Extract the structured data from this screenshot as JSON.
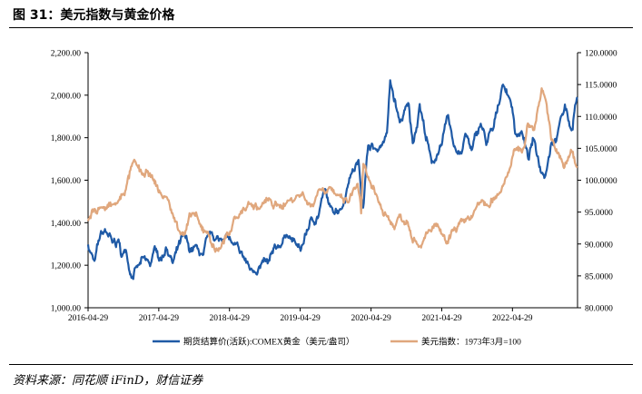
{
  "figure": {
    "title": "图 31：美元指数与黄金价格",
    "source": "资料来源：同花顺 iFinD，财信证券"
  },
  "colors": {
    "gold": "#1f5aa6",
    "dxy": "#e0a77d"
  },
  "chart_data": {
    "type": "line",
    "x_ticks": [
      "2016-04-29",
      "2017-04-29",
      "2018-04-29",
      "2019-04-29",
      "2020-04-29",
      "2021-04-29",
      "2022-04-29"
    ],
    "x_range": [
      "2016-04-29",
      "2023-03-31"
    ],
    "y_left": {
      "min": 1000,
      "max": 2200,
      "ticks": [
        "1,000.00",
        "1,200.00",
        "1,400.00",
        "1,600.00",
        "1,800.00",
        "2,000.00",
        "2,200.00"
      ]
    },
    "y_right": {
      "min": 80,
      "max": 120,
      "ticks": [
        "80.0000",
        "85.0000",
        "90.0000",
        "95.0000",
        "100.0000",
        "105.0000",
        "110.0000",
        "115.0000",
        "120.0000"
      ]
    },
    "grid": false,
    "legend_position": "bottom",
    "series": [
      {
        "name": "期货结算价(活跃):COMEX黄金（美元/盎司）",
        "axis": "left",
        "points": [
          [
            "2016-04-29",
            1290
          ],
          [
            "2016-06-01",
            1215
          ],
          [
            "2016-07-05",
            1355
          ],
          [
            "2016-08-01",
            1360
          ],
          [
            "2016-09-01",
            1310
          ],
          [
            "2016-10-03",
            1315
          ],
          [
            "2016-10-15",
            1255
          ],
          [
            "2016-11-10",
            1265
          ],
          [
            "2016-12-15",
            1135
          ],
          [
            "2017-01-15",
            1200
          ],
          [
            "2017-02-15",
            1235
          ],
          [
            "2017-03-15",
            1200
          ],
          [
            "2017-04-15",
            1285
          ],
          [
            "2017-05-10",
            1225
          ],
          [
            "2017-06-05",
            1285
          ],
          [
            "2017-07-10",
            1210
          ],
          [
            "2017-09-08",
            1350
          ],
          [
            "2017-10-05",
            1270
          ],
          [
            "2017-11-15",
            1285
          ],
          [
            "2017-12-12",
            1245
          ],
          [
            "2018-01-25",
            1360
          ],
          [
            "2018-03-05",
            1320
          ],
          [
            "2018-04-10",
            1345
          ],
          [
            "2018-05-20",
            1290
          ],
          [
            "2018-06-15",
            1280
          ],
          [
            "2018-08-16",
            1180
          ],
          [
            "2018-10-01",
            1190
          ],
          [
            "2018-11-15",
            1215
          ],
          [
            "2019-01-01",
            1285
          ],
          [
            "2019-02-20",
            1345
          ],
          [
            "2019-05-01",
            1270
          ],
          [
            "2019-06-25",
            1420
          ],
          [
            "2019-08-01",
            1430
          ],
          [
            "2019-09-04",
            1560
          ],
          [
            "2019-10-01",
            1470
          ],
          [
            "2019-12-01",
            1470
          ],
          [
            "2020-01-08",
            1610
          ],
          [
            "2020-02-24",
            1690
          ],
          [
            "2020-03-19",
            1470
          ],
          [
            "2020-04-14",
            1770
          ],
          [
            "2020-06-01",
            1740
          ],
          [
            "2020-07-20",
            1820
          ],
          [
            "2020-08-06",
            2070
          ],
          [
            "2020-09-24",
            1870
          ],
          [
            "2020-11-10",
            1960
          ],
          [
            "2020-11-30",
            1770
          ],
          [
            "2021-01-05",
            1950
          ],
          [
            "2021-03-08",
            1680
          ],
          [
            "2021-04-29",
            1770
          ],
          [
            "2021-06-01",
            1910
          ],
          [
            "2021-07-01",
            1760
          ],
          [
            "2021-08-09",
            1730
          ],
          [
            "2021-09-01",
            1820
          ],
          [
            "2021-09-30",
            1740
          ],
          [
            "2021-11-16",
            1870
          ],
          [
            "2021-12-15",
            1770
          ],
          [
            "2022-01-20",
            1840
          ],
          [
            "2022-03-08",
            2050
          ],
          [
            "2022-04-18",
            1980
          ],
          [
            "2022-05-16",
            1810
          ],
          [
            "2022-06-15",
            1830
          ],
          [
            "2022-07-20",
            1700
          ],
          [
            "2022-08-15",
            1800
          ],
          [
            "2022-09-28",
            1630
          ],
          [
            "2022-10-20",
            1640
          ],
          [
            "2022-11-15",
            1775
          ],
          [
            "2022-12-15",
            1800
          ],
          [
            "2023-01-25",
            1950
          ],
          [
            "2023-02-28",
            1830
          ],
          [
            "2023-03-15",
            1930
          ],
          [
            "2023-03-31",
            1990
          ]
        ]
      },
      {
        "name": "美元指数：1973年3月=100",
        "axis": "right",
        "points": [
          [
            "2016-04-29",
            93.5
          ],
          [
            "2016-06-01",
            95.5
          ],
          [
            "2016-07-01",
            95.8
          ],
          [
            "2016-08-01",
            95.5
          ],
          [
            "2016-09-01",
            96.0
          ],
          [
            "2016-10-01",
            96.5
          ],
          [
            "2016-11-10",
            98.5
          ],
          [
            "2016-12-20",
            103.0
          ],
          [
            "2017-01-03",
            102.5
          ],
          [
            "2017-02-15",
            100.5
          ],
          [
            "2017-03-01",
            101.5
          ],
          [
            "2017-04-01",
            100.0
          ],
          [
            "2017-05-15",
            97.5
          ],
          [
            "2017-06-15",
            97.0
          ],
          [
            "2017-07-15",
            94.0
          ],
          [
            "2017-09-08",
            91.5
          ],
          [
            "2017-10-25",
            95.0
          ],
          [
            "2017-11-25",
            93.0
          ],
          [
            "2018-01-01",
            92.0
          ],
          [
            "2018-02-15",
            89.0
          ],
          [
            "2018-03-15",
            89.5
          ],
          [
            "2018-04-29",
            91.5
          ],
          [
            "2018-05-20",
            94.0
          ],
          [
            "2018-06-30",
            95.0
          ],
          [
            "2018-08-15",
            96.5
          ],
          [
            "2018-10-01",
            95.5
          ],
          [
            "2018-11-15",
            97.0
          ],
          [
            "2019-01-01",
            96.0
          ],
          [
            "2019-03-01",
            96.8
          ],
          [
            "2019-05-15",
            98.0
          ],
          [
            "2019-06-25",
            95.8
          ],
          [
            "2019-08-01",
            98.5
          ],
          [
            "2019-10-01",
            99.0
          ],
          [
            "2019-11-01",
            97.5
          ],
          [
            "2020-01-01",
            96.5
          ],
          [
            "2020-02-20",
            99.5
          ],
          [
            "2020-03-09",
            95.0
          ],
          [
            "2020-03-20",
            102.5
          ],
          [
            "2020-05-01",
            99.0
          ],
          [
            "2020-06-10",
            96.5
          ],
          [
            "2020-07-20",
            94.5
          ],
          [
            "2020-08-31",
            92.5
          ],
          [
            "2020-09-25",
            94.5
          ],
          [
            "2020-11-01",
            93.5
          ],
          [
            "2021-01-06",
            89.5
          ],
          [
            "2021-03-31",
            93.2
          ],
          [
            "2021-05-25",
            89.8
          ],
          [
            "2021-06-30",
            92.4
          ],
          [
            "2021-08-20",
            93.5
          ],
          [
            "2021-10-01",
            94.3
          ],
          [
            "2021-11-24",
            96.8
          ],
          [
            "2021-12-31",
            95.8
          ],
          [
            "2022-01-28",
            97.2
          ],
          [
            "2022-03-08",
            99.0
          ],
          [
            "2022-04-29",
            103.5
          ],
          [
            "2022-05-13",
            104.8
          ],
          [
            "2022-06-30",
            105.0
          ],
          [
            "2022-07-14",
            108.5
          ],
          [
            "2022-08-20",
            108.0
          ],
          [
            "2022-09-27",
            114.5
          ],
          [
            "2022-10-20",
            112.5
          ],
          [
            "2022-11-15",
            106.5
          ],
          [
            "2022-12-15",
            104.5
          ],
          [
            "2023-01-20",
            102.0
          ],
          [
            "2023-02-28",
            104.8
          ],
          [
            "2023-03-31",
            102.0
          ]
        ]
      }
    ]
  }
}
